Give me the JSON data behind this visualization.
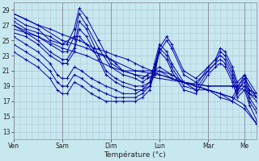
{
  "background_color": "#c8e8f0",
  "grid_color": "#b0ccd8",
  "line_color": "#0000aa",
  "xlabel": "Température (°c)",
  "yticks": [
    13,
    15,
    17,
    19,
    21,
    23,
    25,
    27,
    29
  ],
  "day_labels": [
    "Ven",
    "Sam",
    "Dim",
    "Lun",
    "Mar",
    "Me"
  ],
  "day_x": [
    0.0,
    0.2,
    0.4,
    0.6,
    0.8,
    0.95
  ],
  "xlim": [
    0,
    1.0
  ],
  "ylim": [
    12.0,
    30.0
  ],
  "series": [
    {
      "x": [
        0.0,
        0.05,
        0.1,
        0.15,
        0.2,
        0.25,
        0.27,
        0.3,
        0.33,
        0.38,
        0.42,
        0.47,
        0.5,
        0.53,
        0.57,
        0.6,
        0.65,
        0.7,
        0.75,
        0.8,
        0.85,
        0.9,
        0.95,
        1.0
      ],
      "y": [
        28.5,
        27.8,
        27.0,
        26.5,
        25.8,
        25.2,
        25.0,
        24.5,
        24.0,
        23.5,
        23.0,
        22.5,
        22.0,
        21.5,
        21.0,
        20.5,
        20.0,
        19.5,
        19.0,
        18.5,
        18.0,
        17.0,
        16.0,
        14.0
      ]
    },
    {
      "x": [
        0.0,
        0.05,
        0.1,
        0.15,
        0.2,
        0.25,
        0.27,
        0.3,
        0.33,
        0.38,
        0.42,
        0.45,
        0.5,
        0.53,
        0.57,
        0.6,
        0.65,
        0.7,
        0.75,
        0.8,
        0.85,
        0.9,
        0.95,
        1.0
      ],
      "y": [
        28.0,
        27.0,
        26.5,
        25.0,
        24.5,
        25.5,
        25.5,
        24.5,
        23.5,
        23.0,
        22.0,
        21.0,
        21.0,
        21.0,
        21.0,
        21.0,
        20.5,
        19.5,
        19.0,
        18.5,
        18.0,
        17.5,
        16.5,
        14.0
      ]
    },
    {
      "x": [
        0.0,
        0.05,
        0.1,
        0.15,
        0.2,
        0.22,
        0.25,
        0.27,
        0.3,
        0.35,
        0.4,
        0.45,
        0.5,
        0.53,
        0.55,
        0.58,
        0.6,
        0.65,
        0.7,
        0.75,
        0.8,
        0.85,
        0.9,
        0.95,
        1.0
      ],
      "y": [
        27.5,
        26.5,
        26.0,
        25.5,
        24.5,
        24.5,
        26.5,
        29.2,
        28.0,
        25.0,
        22.0,
        21.0,
        20.5,
        20.0,
        20.5,
        21.0,
        21.5,
        20.5,
        19.5,
        19.0,
        18.5,
        18.0,
        17.5,
        20.5,
        18.0
      ]
    },
    {
      "x": [
        0.0,
        0.05,
        0.1,
        0.15,
        0.2,
        0.22,
        0.25,
        0.27,
        0.3,
        0.35,
        0.4,
        0.45,
        0.5,
        0.53,
        0.55,
        0.58,
        0.6,
        0.65,
        0.7,
        0.75,
        0.8,
        0.85,
        0.9,
        0.95,
        1.0
      ],
      "y": [
        27.0,
        26.0,
        25.5,
        24.5,
        23.5,
        23.5,
        25.5,
        28.5,
        27.0,
        24.0,
        21.5,
        20.5,
        20.0,
        19.5,
        20.0,
        20.5,
        21.0,
        20.0,
        19.5,
        18.5,
        18.5,
        17.5,
        17.0,
        20.0,
        17.5
      ]
    },
    {
      "x": [
        0.0,
        0.05,
        0.1,
        0.15,
        0.2,
        0.22,
        0.25,
        0.27,
        0.3,
        0.35,
        0.38,
        0.42,
        0.45,
        0.5,
        0.53,
        0.56,
        0.58,
        0.6,
        0.63,
        0.65,
        0.7,
        0.75,
        0.8,
        0.83,
        0.85,
        0.87,
        0.9,
        0.92,
        0.95,
        0.97,
        1.0
      ],
      "y": [
        26.5,
        26.0,
        25.0,
        23.5,
        22.5,
        22.5,
        24.0,
        27.5,
        26.5,
        23.0,
        21.0,
        20.0,
        19.5,
        19.0,
        19.0,
        19.5,
        21.0,
        24.0,
        25.5,
        24.5,
        21.0,
        20.0,
        21.5,
        22.5,
        24.0,
        23.5,
        21.5,
        19.5,
        20.5,
        18.5,
        17.5
      ]
    },
    {
      "x": [
        0.0,
        0.05,
        0.1,
        0.15,
        0.2,
        0.22,
        0.25,
        0.27,
        0.3,
        0.35,
        0.38,
        0.42,
        0.45,
        0.5,
        0.53,
        0.56,
        0.58,
        0.6,
        0.63,
        0.65,
        0.7,
        0.75,
        0.8,
        0.83,
        0.85,
        0.87,
        0.9,
        0.92,
        0.95,
        0.97,
        1.0
      ],
      "y": [
        26.0,
        25.5,
        24.5,
        23.0,
        22.0,
        22.0,
        23.5,
        26.5,
        25.5,
        22.5,
        20.5,
        19.5,
        19.0,
        18.5,
        18.5,
        19.0,
        20.5,
        23.5,
        25.0,
        24.0,
        20.5,
        19.5,
        21.0,
        22.0,
        23.5,
        23.0,
        21.0,
        19.0,
        20.0,
        18.0,
        17.0
      ]
    },
    {
      "x": [
        0.0,
        0.05,
        0.1,
        0.15,
        0.18,
        0.2,
        0.22,
        0.25,
        0.28,
        0.32,
        0.35,
        0.38,
        0.42,
        0.45,
        0.5,
        0.53,
        0.56,
        0.58,
        0.6,
        0.63,
        0.65,
        0.7,
        0.75,
        0.8,
        0.83,
        0.85,
        0.87,
        0.9,
        0.92,
        0.95,
        0.97,
        1.0
      ],
      "y": [
        25.5,
        24.5,
        23.5,
        22.0,
        20.5,
        20.0,
        20.0,
        21.5,
        21.0,
        20.0,
        19.5,
        19.0,
        18.5,
        18.0,
        18.0,
        18.5,
        19.5,
        22.0,
        24.5,
        23.5,
        22.0,
        19.5,
        19.0,
        21.5,
        22.5,
        23.0,
        22.5,
        20.5,
        18.5,
        19.5,
        17.5,
        16.0
      ]
    },
    {
      "x": [
        0.0,
        0.05,
        0.1,
        0.15,
        0.18,
        0.2,
        0.22,
        0.25,
        0.28,
        0.32,
        0.35,
        0.38,
        0.42,
        0.45,
        0.5,
        0.53,
        0.56,
        0.58,
        0.6,
        0.63,
        0.65,
        0.7,
        0.75,
        0.8,
        0.83,
        0.85,
        0.87,
        0.9,
        0.92,
        0.95,
        0.97,
        1.0
      ],
      "y": [
        24.5,
        23.5,
        22.5,
        21.0,
        19.5,
        19.0,
        19.0,
        20.5,
        20.0,
        19.0,
        18.5,
        18.0,
        17.5,
        17.5,
        17.5,
        18.0,
        19.0,
        21.5,
        24.0,
        23.0,
        21.5,
        19.0,
        18.5,
        21.0,
        22.0,
        22.5,
        22.0,
        20.0,
        18.0,
        19.0,
        17.0,
        15.5
      ]
    },
    {
      "x": [
        0.0,
        0.05,
        0.1,
        0.15,
        0.18,
        0.2,
        0.22,
        0.25,
        0.28,
        0.32,
        0.35,
        0.38,
        0.42,
        0.45,
        0.5,
        0.53,
        0.56,
        0.58,
        0.6,
        0.63,
        0.65,
        0.7,
        0.75,
        0.8,
        0.83,
        0.85,
        0.87,
        0.9,
        0.92,
        0.95,
        0.97,
        1.0
      ],
      "y": [
        23.5,
        22.5,
        21.5,
        20.0,
        18.5,
        18.0,
        18.0,
        19.5,
        19.0,
        18.0,
        17.5,
        17.0,
        17.0,
        17.0,
        17.0,
        17.5,
        18.5,
        21.0,
        23.5,
        22.5,
        21.0,
        18.5,
        18.0,
        20.5,
        21.5,
        22.0,
        21.5,
        19.5,
        17.5,
        18.5,
        16.5,
        14.5
      ]
    },
    {
      "x": [
        0.0,
        0.1,
        0.2,
        0.3,
        0.4,
        0.5,
        0.6,
        0.7,
        0.8,
        0.9,
        0.95,
        0.97,
        1.0
      ],
      "y": [
        28.5,
        27.0,
        25.0,
        24.0,
        22.5,
        21.0,
        20.5,
        19.5,
        19.0,
        19.0,
        19.0,
        18.5,
        18.0
      ]
    },
    {
      "x": [
        0.0,
        0.1,
        0.2,
        0.3,
        0.4,
        0.5,
        0.6,
        0.7,
        0.8,
        0.9,
        0.95,
        0.97,
        1.0
      ],
      "y": [
        27.0,
        25.5,
        24.0,
        23.0,
        21.5,
        20.5,
        20.0,
        19.5,
        19.0,
        19.0,
        18.5,
        18.0,
        17.5
      ]
    }
  ]
}
